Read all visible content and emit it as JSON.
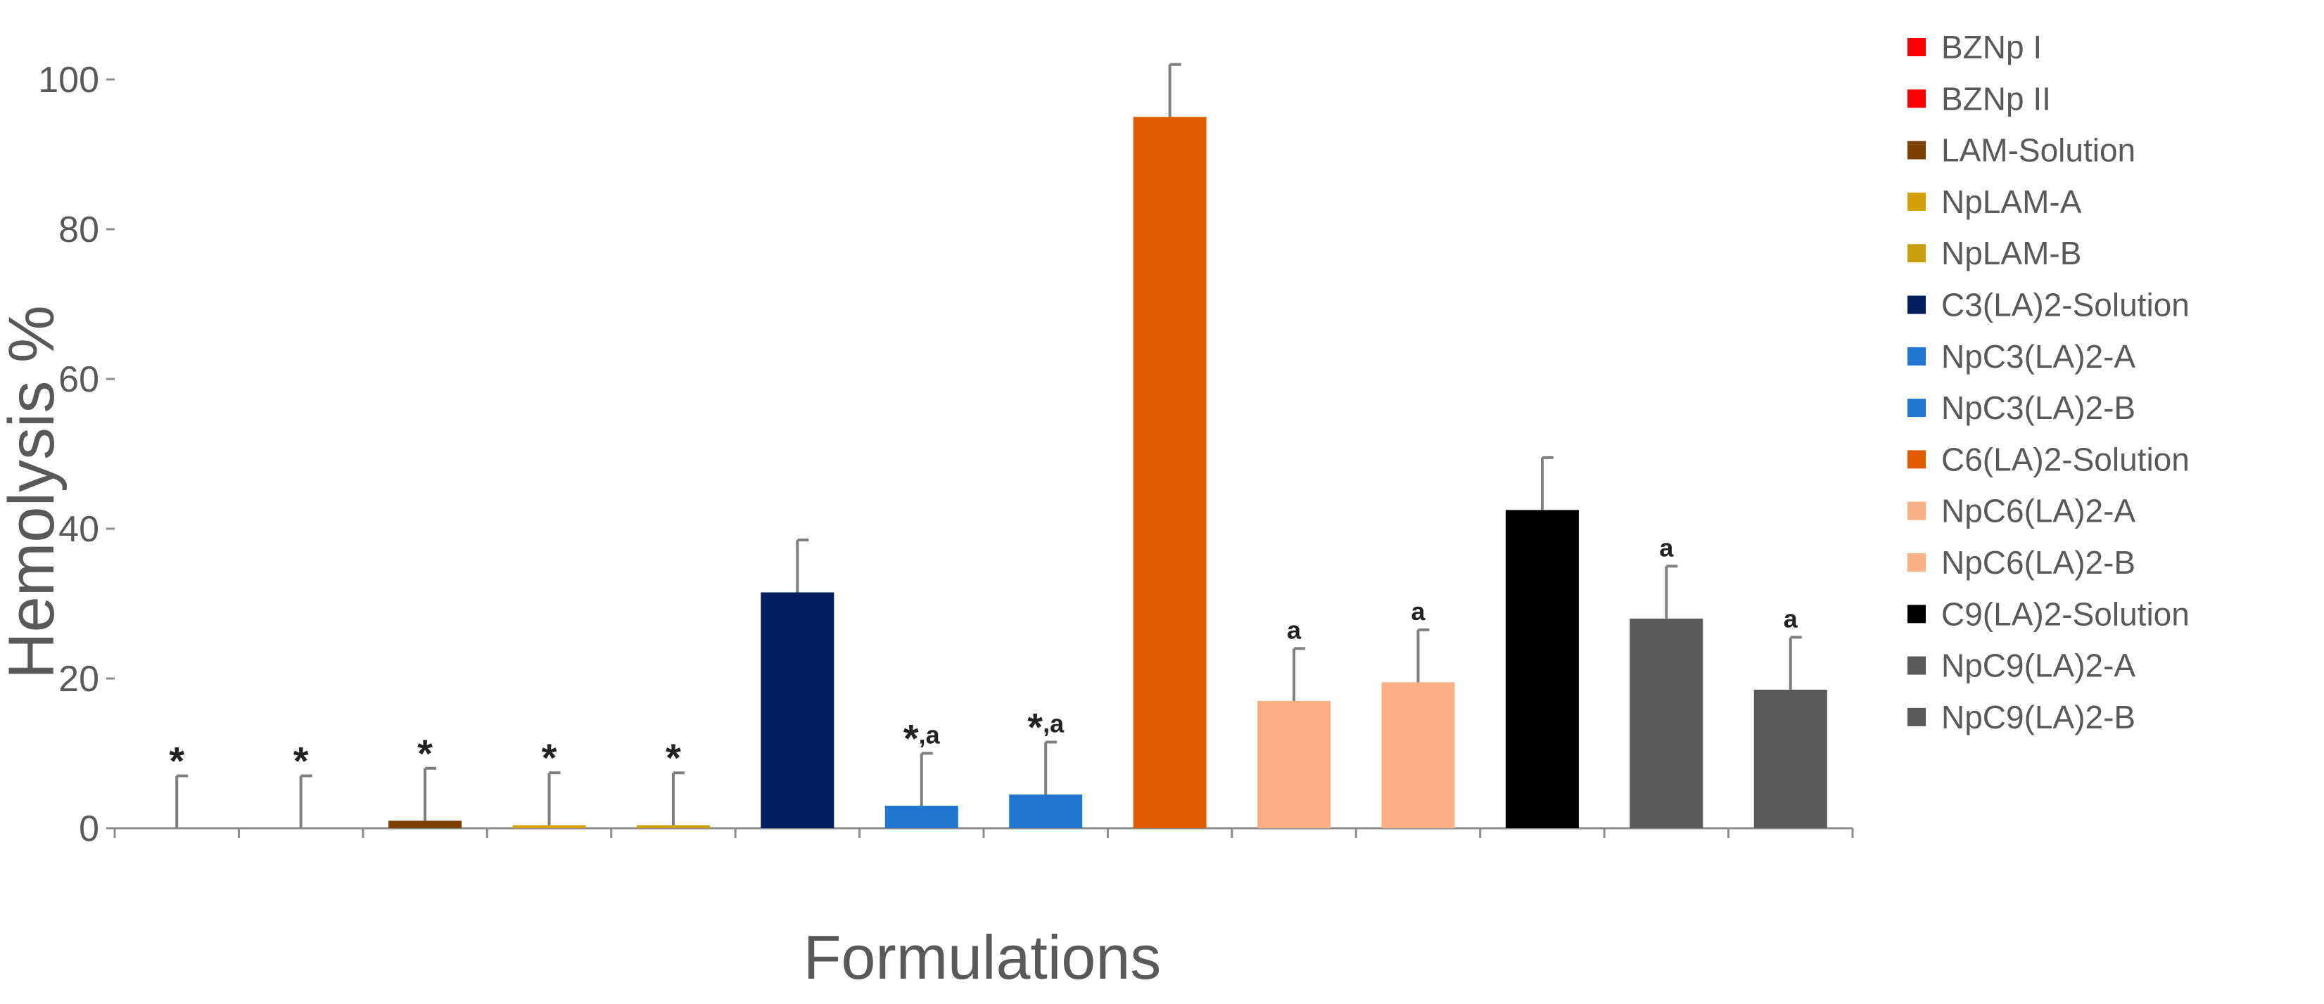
{
  "chart_data": {
    "type": "bar",
    "ylabel": "Hemolysis %",
    "xlabel": "Formulations",
    "ylim": [
      0,
      100
    ],
    "yticks": [
      0,
      20,
      40,
      60,
      80,
      100
    ],
    "grid": false,
    "legend_position": "right",
    "categories": [
      "BZNp I",
      "BZNp II",
      "LAM-Solution",
      "NpLAM-A",
      "NpLAM-B",
      "C3(LA)2-Solution",
      "NpC3(LA)2-A",
      "NpC3(LA)2-B",
      "C6(LA)2-Solution",
      "NpC6(LA)2-A",
      "NpC6(LA)2-B",
      "C9(LA)2-Solution",
      "NpC9(LA)2-A",
      "NpC9(LA)2-B"
    ],
    "values": [
      0,
      0,
      1,
      0.4,
      0.4,
      31.5,
      3,
      4.5,
      95,
      17,
      19.5,
      42.5,
      28,
      18.5
    ],
    "errors": [
      7,
      7,
      7,
      7,
      7,
      7,
      7,
      7,
      7,
      7,
      7,
      7,
      7,
      7
    ],
    "colors": [
      "#FF0000",
      "#FF0000",
      "#7B3F00",
      "#D4A00A",
      "#C9A10E",
      "#001D5E",
      "#2276D2",
      "#2276D2",
      "#E05A00",
      "#FBAF85",
      "#FBAF85",
      "#000000",
      "#595959",
      "#595959"
    ],
    "annotations": [
      {
        "index": 0,
        "star": "*",
        "letter": ""
      },
      {
        "index": 1,
        "star": "*",
        "letter": ""
      },
      {
        "index": 2,
        "star": "*",
        "letter": ""
      },
      {
        "index": 3,
        "star": "*",
        "letter": ""
      },
      {
        "index": 4,
        "star": "*",
        "letter": ""
      },
      {
        "index": 6,
        "star": "*",
        "letter": ",a"
      },
      {
        "index": 7,
        "star": "*",
        "letter": ",a"
      },
      {
        "index": 9,
        "star": "",
        "letter": "a"
      },
      {
        "index": 10,
        "star": "",
        "letter": "a"
      },
      {
        "index": 12,
        "star": "",
        "letter": "a"
      },
      {
        "index": 13,
        "star": "",
        "letter": "a"
      }
    ]
  }
}
